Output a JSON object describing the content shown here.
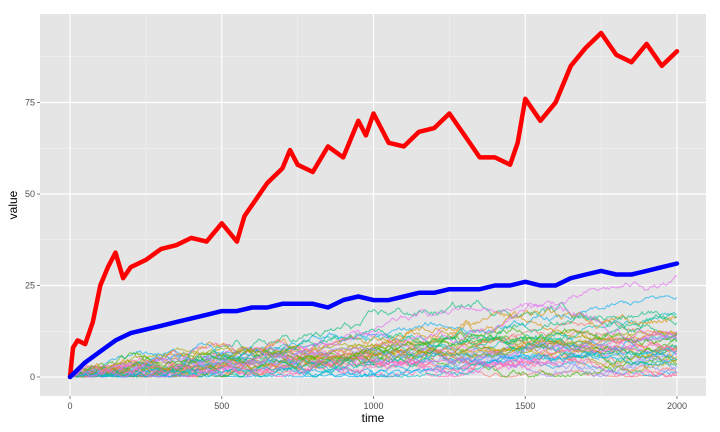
{
  "chart_data": {
    "type": "line",
    "title": "",
    "xlabel": "time",
    "ylabel": "value",
    "xlim": [
      0,
      2000
    ],
    "ylim": [
      0,
      95
    ],
    "x_ticks": [
      {
        "value": 0,
        "label": "0"
      },
      {
        "value": 500,
        "label": "500"
      },
      {
        "value": 1000,
        "label": "1000"
      },
      {
        "value": 1500,
        "label": "1500"
      },
      {
        "value": 2000,
        "label": "2000"
      }
    ],
    "y_ticks": [
      {
        "value": 0,
        "label": "0"
      },
      {
        "value": 25,
        "label": "25"
      },
      {
        "value": 50,
        "label": "50"
      },
      {
        "value": 75,
        "label": "75"
      }
    ],
    "grid": true,
    "legend": "none",
    "background": "#e5e5e5",
    "background_series": {
      "count": 40,
      "note": "many random-walk series drawn thin and semi-transparent in rainbow hues",
      "colors": [
        "#f8766d",
        "#d89000",
        "#a3a500",
        "#39b600",
        "#00bf7d",
        "#00bfc4",
        "#00b0f6",
        "#9590ff",
        "#e76bf3",
        "#ff62bc"
      ]
    },
    "series": [
      {
        "color": "#ff0000",
        "x": [
          0,
          10,
          25,
          50,
          75,
          100,
          125,
          150,
          175,
          200,
          250,
          300,
          350,
          400,
          450,
          500,
          550,
          575,
          600,
          650,
          700,
          725,
          750,
          800,
          850,
          900,
          950,
          975,
          1000,
          1050,
          1100,
          1150,
          1200,
          1250,
          1300,
          1350,
          1400,
          1450,
          1475,
          1500,
          1550,
          1600,
          1650,
          1700,
          1750,
          1800,
          1850,
          1900,
          1950,
          2000
        ],
        "values": [
          0,
          8,
          10,
          9,
          15,
          25,
          30,
          34,
          27,
          30,
          32,
          35,
          36,
          38,
          37,
          42,
          37,
          44,
          47,
          53,
          57,
          62,
          58,
          56,
          63,
          60,
          70,
          66,
          72,
          64,
          63,
          67,
          68,
          72,
          66,
          60,
          60,
          58,
          64,
          76,
          70,
          75,
          85,
          90,
          94,
          88,
          86,
          91,
          85,
          89
        ]
      },
      {
        "color": "#0000ff",
        "x": [
          0,
          25,
          50,
          100,
          150,
          200,
          250,
          300,
          350,
          400,
          450,
          500,
          550,
          600,
          650,
          700,
          750,
          800,
          850,
          900,
          950,
          1000,
          1050,
          1100,
          1150,
          1200,
          1250,
          1300,
          1350,
          1400,
          1450,
          1500,
          1550,
          1600,
          1650,
          1700,
          1750,
          1800,
          1850,
          1900,
          1950,
          2000
        ],
        "values": [
          0,
          2,
          4,
          7,
          10,
          12,
          13,
          14,
          15,
          16,
          17,
          18,
          18,
          19,
          19,
          20,
          20,
          20,
          19,
          21,
          22,
          21,
          21,
          22,
          23,
          23,
          24,
          24,
          24,
          25,
          25,
          26,
          25,
          25,
          27,
          28,
          29,
          28,
          28,
          29,
          30,
          31
        ]
      }
    ]
  }
}
